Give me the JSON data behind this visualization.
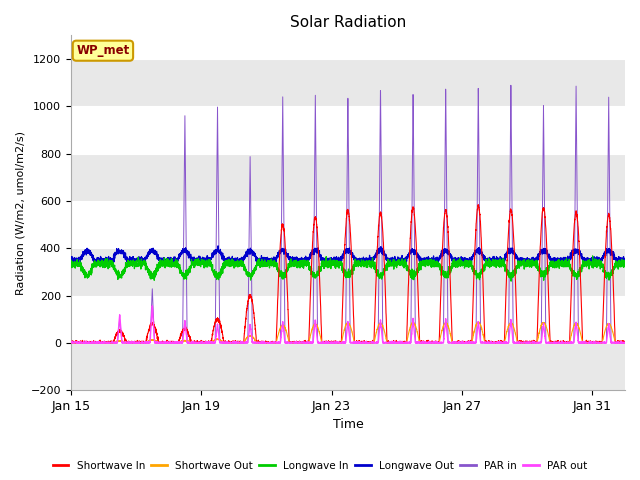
{
  "title": "Solar Radiation",
  "xlabel": "Time",
  "ylabel": "Radiation (W/m2, umol/m2/s)",
  "ylim": [
    -200,
    1300
  ],
  "yticks": [
    -200,
    0,
    200,
    400,
    600,
    800,
    1000,
    1200
  ],
  "xlim_days": [
    0,
    17
  ],
  "x_tick_labels": [
    "Jan 15",
    "Jan 19",
    "Jan 23",
    "Jan 27",
    "Jan 31"
  ],
  "x_tick_positions": [
    0,
    4,
    8,
    12,
    16
  ],
  "fig_bg_color": "#ffffff",
  "plot_bg_color": "#ffffff",
  "series": [
    {
      "name": "Shortwave In",
      "color": "#ff0000"
    },
    {
      "name": "Shortwave Out",
      "color": "#ffa500"
    },
    {
      "name": "Longwave In",
      "color": "#00cc00"
    },
    {
      "name": "Longwave Out",
      "color": "#0000cc"
    },
    {
      "name": "PAR in",
      "color": "#8855cc"
    },
    {
      "name": "PAR out",
      "color": "#ff44ff"
    }
  ],
  "wp_met_label": "WP_met",
  "wp_met_bg": "#ffff99",
  "wp_met_border": "#cc9900",
  "wp_met_text_color": "#880000",
  "grid_color": "#dddddd",
  "band_color": "#e8e8e8"
}
